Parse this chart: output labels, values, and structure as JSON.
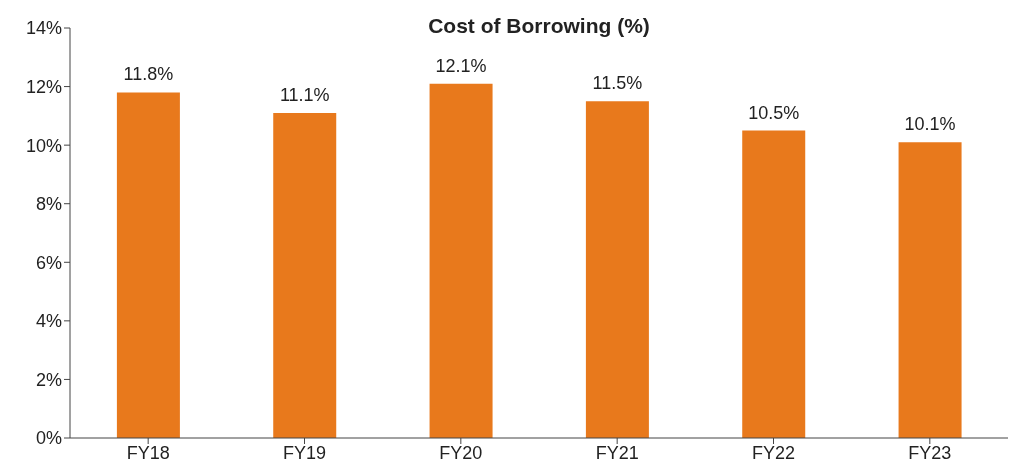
{
  "chart_data": {
    "type": "bar",
    "title": "Cost of Borrowing (%)",
    "categories": [
      "FY18",
      "FY19",
      "FY20",
      "FY21",
      "FY22",
      "FY23"
    ],
    "values": [
      11.8,
      11.1,
      12.1,
      11.5,
      10.5,
      10.1
    ],
    "value_labels": [
      "11.8%",
      "11.1%",
      "12.1%",
      "11.5%",
      "10.5%",
      "10.1%"
    ],
    "color": "#e8791c",
    "ylim": [
      0,
      14
    ],
    "yticks": [
      {
        "value": 0,
        "label": "0%"
      },
      {
        "value": 2,
        "label": "2%"
      },
      {
        "value": 4,
        "label": "4%"
      },
      {
        "value": 6,
        "label": "6%"
      },
      {
        "value": 8,
        "label": "8%"
      },
      {
        "value": 10,
        "label": "10%"
      },
      {
        "value": 12,
        "label": "12%"
      },
      {
        "value": 14,
        "label": "14%"
      }
    ],
    "grid": false,
    "legend": false
  }
}
